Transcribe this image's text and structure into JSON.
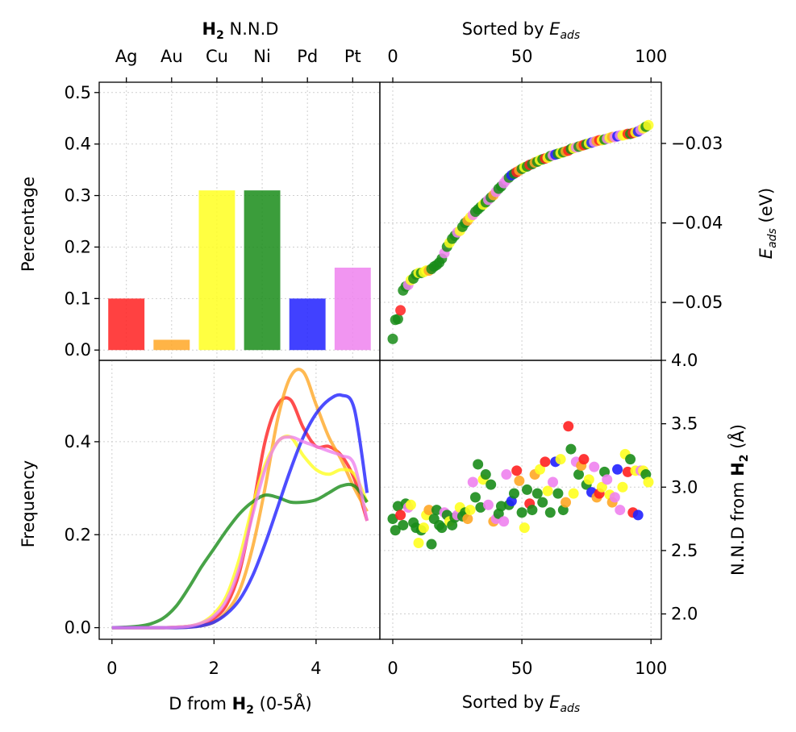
{
  "chart_data": [
    {
      "id": "bar",
      "type": "bar",
      "categories": [
        "Ag",
        "Au",
        "Cu",
        "Ni",
        "Pd",
        "Pt"
      ],
      "values": [
        0.1,
        0.02,
        0.31,
        0.31,
        0.1,
        0.16
      ],
      "colors": [
        "#ff2020",
        "#ffa726",
        "#ffff20",
        "#198c19",
        "#2020ff",
        "#ee82ee"
      ],
      "top_title_bold": "H",
      "top_title_sub": "2",
      "top_title_rest": " N.N.D",
      "ylabel": "Percentage",
      "ylim": [
        -0.02,
        0.52
      ],
      "yticks": [
        0.0,
        0.1,
        0.2,
        0.3,
        0.4,
        0.5
      ],
      "ytick_labels": [
        "0.0",
        "0.1",
        "0.2",
        "0.3",
        "0.4",
        "0.5"
      ],
      "grid": true
    },
    {
      "id": "eads",
      "type": "scatter",
      "top_xlabel": "Sorted by ",
      "top_xlabel_italic": "E",
      "top_xlabel_sub": "ads",
      "xlim": [
        -5,
        104
      ],
      "xticks": [
        0,
        50,
        100
      ],
      "xtick_labels": [
        "0",
        "50",
        "100"
      ],
      "right_ylabel_italic": "E",
      "right_ylabel_sub": "ads",
      "right_ylabel_rest": " (eV)",
      "ylim": [
        -0.0573,
        -0.0223
      ],
      "yticks": [
        -0.05,
        -0.04,
        -0.03
      ],
      "ytick_labels": [
        "−0.05",
        "−0.04",
        "−0.03"
      ],
      "grid": true,
      "y": [
        -0.0546,
        -0.0522,
        -0.0521,
        -0.051,
        -0.0485,
        -0.048,
        -0.0478,
        -0.0472,
        -0.047,
        -0.0465,
        -0.0463,
        -0.0463,
        -0.0462,
        -0.046,
        -0.046,
        -0.0458,
        -0.0455,
        -0.0453,
        -0.045,
        -0.0445,
        -0.0438,
        -0.043,
        -0.0425,
        -0.042,
        -0.0416,
        -0.0412,
        -0.041,
        -0.0405,
        -0.04,
        -0.0397,
        -0.0393,
        -0.039,
        -0.0386,
        -0.0383,
        -0.038,
        -0.0377,
        -0.0374,
        -0.0371,
        -0.0368,
        -0.0365,
        -0.0361,
        -0.0357,
        -0.0354,
        -0.035,
        -0.0346,
        -0.0343,
        -0.034,
        -0.0338,
        -0.0336,
        -0.0334,
        -0.0332,
        -0.033,
        -0.0329,
        -0.0327,
        -0.0326,
        -0.0324,
        -0.0323,
        -0.0321,
        -0.032,
        -0.0319,
        -0.0318,
        -0.0316,
        -0.0315,
        -0.0314,
        -0.0313,
        -0.0312,
        -0.0311,
        -0.031,
        -0.0309,
        -0.0307,
        -0.0306,
        -0.0305,
        -0.0304,
        -0.0303,
        -0.0302,
        -0.0301,
        -0.03,
        -0.0299,
        -0.0298,
        -0.0297,
        -0.0296,
        -0.0296,
        -0.0295,
        -0.0294,
        -0.0293,
        -0.0292,
        -0.0292,
        -0.0291,
        -0.029,
        -0.029,
        -0.0289,
        -0.0288,
        -0.0288,
        -0.0287,
        -0.0286,
        -0.0285,
        -0.0283,
        -0.0281,
        -0.0279,
        -0.0277
      ],
      "colors": [
        "#198c19",
        "#198c19",
        "#198c19",
        "#ff2020",
        "#198c19",
        "#198c19",
        "#ee82ee",
        "#ffff20",
        "#198c19",
        "#198c19",
        "#ffff20",
        "#198c19",
        "#ffff20",
        "#ffff20",
        "#ffa726",
        "#198c19",
        "#198c19",
        "#198c19",
        "#198c19",
        "#198c19",
        "#ee82ee",
        "#198c19",
        "#ffff20",
        "#198c19",
        "#198c19",
        "#ee82ee",
        "#ffff20",
        "#198c19",
        "#198c19",
        "#ffa726",
        "#ffff20",
        "#ee82ee",
        "#198c19",
        "#198c19",
        "#198c19",
        "#ffff20",
        "#198c19",
        "#ee82ee",
        "#198c19",
        "#ffa726",
        "#ee82ee",
        "#198c19",
        "#198c19",
        "#ee82ee",
        "#ee82ee",
        "#198c19",
        "#2020ff",
        "#198c19",
        "#ff2020",
        "#ffa726",
        "#198c19",
        "#ffff20",
        "#198c19",
        "#ff2020",
        "#198c19",
        "#ffa726",
        "#198c19",
        "#ffff20",
        "#198c19",
        "#ff2020",
        "#ffff20",
        "#198c19",
        "#ee82ee",
        "#2020ff",
        "#198c19",
        "#ffff20",
        "#198c19",
        "#ffa726",
        "#ff2020",
        "#198c19",
        "#ffff20",
        "#ee82ee",
        "#198c19",
        "#ffa726",
        "#ff2020",
        "#198c19",
        "#ffff20",
        "#2020ff",
        "#ee82ee",
        "#ffa726",
        "#ff2020",
        "#ffff20",
        "#198c19",
        "#ee82ee",
        "#ffff20",
        "#ffa726",
        "#ee82ee",
        "#2020ff",
        "#ee82ee",
        "#ffff20",
        "#ffff20",
        "#ff2020",
        "#198c19",
        "#ff2020",
        "#ffff20",
        "#2020ff",
        "#ee82ee",
        "#ffff20",
        "#198c19",
        "#ffff20"
      ]
    },
    {
      "id": "kde",
      "type": "line",
      "xlabel_pre": "D from ",
      "xlabel_bold": "H",
      "xlabel_sub": "2",
      "xlabel_post": " (0-5Å)",
      "ylabel": "Frequency",
      "xlim": [
        -0.25,
        5.25
      ],
      "xticks": [
        0,
        2,
        4
      ],
      "xtick_labels": [
        "0",
        "2",
        "4"
      ],
      "ylim": [
        -0.025,
        0.575
      ],
      "yticks": [
        0.0,
        0.2,
        0.4
      ],
      "ytick_labels": [
        "0.0",
        "0.2",
        "0.4"
      ],
      "grid": true,
      "x": [
        0,
        0.25,
        0.5,
        0.75,
        1,
        1.25,
        1.5,
        1.75,
        2,
        2.25,
        2.5,
        2.75,
        3,
        3.25,
        3.5,
        3.75,
        4,
        4.25,
        4.5,
        4.75,
        5
      ],
      "series": [
        {
          "color": "#ff2020",
          "values": [
            0,
            0,
            0,
            0,
            0,
            0.001,
            0.003,
            0.008,
            0.02,
            0.05,
            0.12,
            0.25,
            0.4,
            0.48,
            0.49,
            0.43,
            0.39,
            0.39,
            0.37,
            0.32,
            0.23
          ]
        },
        {
          "color": "#ffa726",
          "values": [
            0,
            0,
            0,
            0,
            0,
            0,
            0.001,
            0.004,
            0.012,
            0.035,
            0.08,
            0.17,
            0.3,
            0.45,
            0.54,
            0.55,
            0.48,
            0.41,
            0.36,
            0.3,
            0.25
          ]
        },
        {
          "color": "#ffff20",
          "values": [
            0,
            0,
            0,
            0,
            0,
            0.001,
            0.003,
            0.01,
            0.03,
            0.07,
            0.15,
            0.26,
            0.35,
            0.4,
            0.41,
            0.37,
            0.34,
            0.33,
            0.34,
            0.33,
            0.27
          ]
        },
        {
          "color": "#198c19",
          "values": [
            0,
            0.001,
            0.003,
            0.008,
            0.02,
            0.045,
            0.085,
            0.13,
            0.17,
            0.21,
            0.245,
            0.27,
            0.285,
            0.28,
            0.27,
            0.27,
            0.275,
            0.29,
            0.305,
            0.305,
            0.27
          ]
        },
        {
          "color": "#2020ff",
          "values": [
            0,
            0,
            0,
            0,
            0,
            0,
            0.001,
            0.004,
            0.012,
            0.03,
            0.06,
            0.11,
            0.18,
            0.26,
            0.34,
            0.41,
            0.46,
            0.49,
            0.5,
            0.47,
            0.29
          ]
        },
        {
          "color": "#ee82ee",
          "values": [
            0,
            0,
            0,
            0,
            0,
            0.001,
            0.003,
            0.01,
            0.025,
            0.06,
            0.13,
            0.24,
            0.34,
            0.4,
            0.41,
            0.4,
            0.39,
            0.38,
            0.37,
            0.35,
            0.23
          ]
        }
      ]
    },
    {
      "id": "nnd",
      "type": "scatter",
      "xlabel": "Sorted by ",
      "xlabel_italic": "E",
      "xlabel_sub": "ads",
      "xlim": [
        -5,
        104
      ],
      "xticks": [
        0,
        50,
        100
      ],
      "xtick_labels": [
        "0",
        "50",
        "100"
      ],
      "right_ylabel_pre": "N.N.D from ",
      "right_ylabel_bold": "H",
      "right_ylabel_sub": "2",
      "right_ylabel_post": " (Å)",
      "ylim": [
        1.8,
        4.0
      ],
      "yticks": [
        2.0,
        2.5,
        3.0,
        3.5,
        4.0
      ],
      "ytick_labels": [
        "2.0",
        "2.5",
        "3.0",
        "3.5",
        "4.0"
      ],
      "grid": true,
      "y": [
        2.75,
        2.66,
        2.85,
        2.78,
        2.7,
        2.87,
        2.84,
        2.86,
        2.72,
        2.68,
        2.56,
        2.66,
        2.68,
        2.78,
        2.82,
        2.55,
        2.75,
        2.82,
        2.7,
        2.68,
        2.8,
        2.78,
        2.73,
        2.7,
        2.76,
        2.78,
        2.84,
        2.77,
        2.8,
        2.75,
        2.82,
        3.04,
        2.92,
        3.18,
        2.84,
        3.06,
        3.1,
        2.86,
        3.02,
        2.73,
        2.75,
        2.79,
        2.85,
        2.73,
        3.1,
        2.86,
        2.89,
        2.95,
        3.13,
        3.05,
        2.8,
        2.68,
        2.98,
        2.87,
        2.82,
        3.1,
        2.95,
        3.14,
        2.88,
        3.2,
        2.97,
        2.8,
        3.04,
        3.2,
        2.95,
        3.22,
        2.82,
        2.88,
        3.48,
        3.3,
        2.95,
        3.2,
        3.1,
        3.17,
        3.22,
        3.02,
        3.06,
        2.96,
        3.16,
        2.92,
        2.95,
        3.0,
        3.12,
        3.06,
        2.94,
        2.88,
        2.92,
        3.14,
        2.82,
        3.0,
        3.26,
        3.12,
        3.22,
        2.8,
        3.13,
        2.78,
        3.13,
        3.13,
        3.1,
        3.04
      ],
      "colors": [
        "#198c19",
        "#198c19",
        "#198c19",
        "#ff2020",
        "#198c19",
        "#198c19",
        "#ee82ee",
        "#ffff20",
        "#198c19",
        "#198c19",
        "#ffff20",
        "#198c19",
        "#ffff20",
        "#ffff20",
        "#ffa726",
        "#198c19",
        "#198c19",
        "#198c19",
        "#198c19",
        "#198c19",
        "#ee82ee",
        "#198c19",
        "#ffff20",
        "#198c19",
        "#198c19",
        "#ee82ee",
        "#ffff20",
        "#198c19",
        "#198c19",
        "#ffa726",
        "#ffff20",
        "#ee82ee",
        "#198c19",
        "#198c19",
        "#198c19",
        "#ffff20",
        "#198c19",
        "#ee82ee",
        "#198c19",
        "#ffa726",
        "#ee82ee",
        "#198c19",
        "#198c19",
        "#ee82ee",
        "#ee82ee",
        "#198c19",
        "#2020ff",
        "#198c19",
        "#ff2020",
        "#ffa726",
        "#198c19",
        "#ffff20",
        "#198c19",
        "#ff2020",
        "#198c19",
        "#ffa726",
        "#198c19",
        "#ffff20",
        "#198c19",
        "#ff2020",
        "#ffff20",
        "#198c19",
        "#ee82ee",
        "#2020ff",
        "#198c19",
        "#ffff20",
        "#198c19",
        "#ffa726",
        "#ff2020",
        "#198c19",
        "#ffff20",
        "#ee82ee",
        "#198c19",
        "#ffa726",
        "#ff2020",
        "#198c19",
        "#ffff20",
        "#2020ff",
        "#ee82ee",
        "#ffa726",
        "#ff2020",
        "#ffff20",
        "#198c19",
        "#ee82ee",
        "#ffff20",
        "#ffa726",
        "#ee82ee",
        "#2020ff",
        "#ee82ee",
        "#ffff20",
        "#ffff20",
        "#ff2020",
        "#198c19",
        "#ff2020",
        "#ffff20",
        "#2020ff",
        "#ee82ee",
        "#ffff20",
        "#198c19",
        "#ffff20"
      ]
    }
  ]
}
